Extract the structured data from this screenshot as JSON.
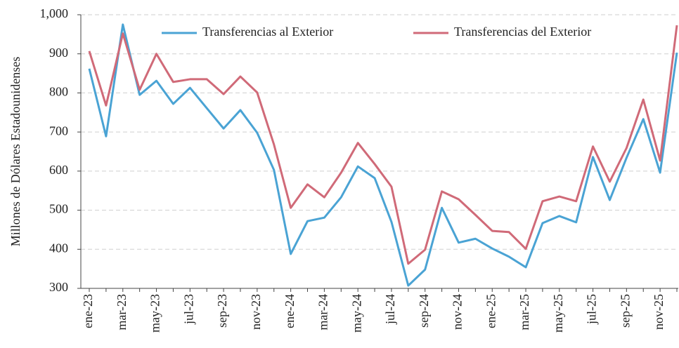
{
  "chart_data": {
    "type": "line",
    "y_label": "Millones de Dólares Estadounidenses",
    "categories": [
      "ene-23",
      null,
      "mar-23",
      null,
      "may-23",
      null,
      "jul-23",
      null,
      "sep-23",
      null,
      "nov-23",
      null,
      "ene-24",
      null,
      "mar-24",
      null,
      "may-24",
      null,
      "jul-24",
      null,
      "sep-24",
      null,
      "nov-24",
      null,
      "ene-25",
      null,
      "mar-25",
      null,
      "may-25",
      null,
      "jul-25",
      null,
      "sep-25",
      null,
      "nov-25",
      null
    ],
    "series": [
      {
        "name": "Transferencias al Exterior",
        "color": "#4aa3d4",
        "values": [
          862,
          689,
          975,
          795,
          831,
          772,
          813,
          761,
          709,
          756,
          698,
          603,
          388,
          472,
          481,
          533,
          612,
          582,
          470,
          307,
          348,
          506,
          417,
          427,
          402,
          381,
          354,
          467,
          485,
          469,
          636,
          526,
          634,
          733,
          596,
          903
        ]
      },
      {
        "name": "Transferencias del Exterior",
        "color": "#d06a78",
        "values": [
          907,
          768,
          952,
          808,
          900,
          828,
          835,
          835,
          797,
          842,
          801,
          668,
          506,
          566,
          533,
          596,
          672,
          618,
          560,
          363,
          399,
          548,
          528,
          488,
          447,
          444,
          401,
          523,
          535,
          523,
          663,
          573,
          659,
          783,
          627,
          973
        ]
      }
    ],
    "ylim": [
      300,
      1000
    ],
    "yticks": [
      300,
      400,
      500,
      600,
      700,
      800,
      900,
      {
        "value": 1000,
        "label": "1,000"
      }
    ],
    "grid": true,
    "legend": "top"
  }
}
